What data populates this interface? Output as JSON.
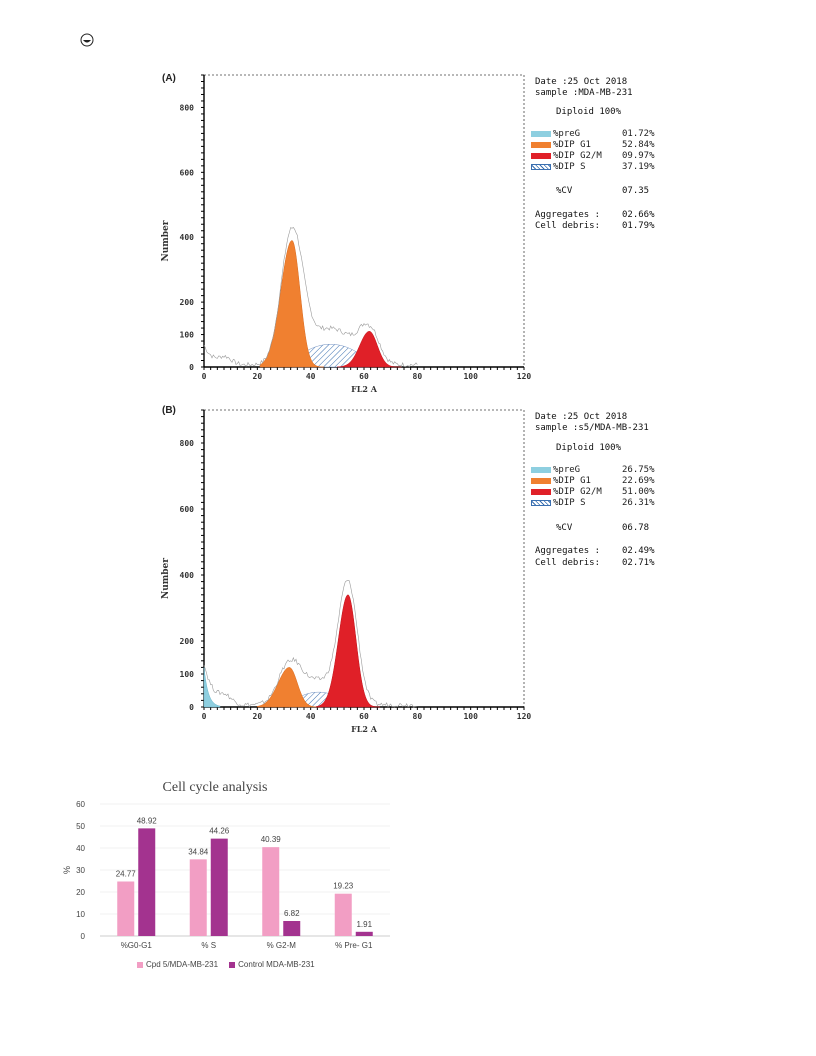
{
  "flow_panels": [
    {
      "label": "(A)",
      "date_line": "Date :25 Oct 2018",
      "sample_line": "sample :MDA-MB-231",
      "diploid": "Diploid 100%",
      "legend": [
        {
          "name": "%preG",
          "value": "01.72%",
          "color": "#8ecfe0"
        },
        {
          "name": "%DIP G1",
          "value": "52.84%",
          "color": "#f08030"
        },
        {
          "name": "%DIP G2/M",
          "value": "09.97%",
          "color": "#e02028"
        },
        {
          "name": "%DIP S",
          "value": "37.19%",
          "color": "hatch"
        }
      ],
      "cv_label": "%CV",
      "cv_value": "07.35",
      "aggregates_label": "Aggregates :",
      "aggregates_value": "02.66%",
      "debris_label": "Cell debris:",
      "debris_value": "01.79%",
      "ylabel": "Number",
      "xlabel": "FL2 A",
      "yticks": [
        0,
        100,
        200,
        400,
        600,
        800
      ],
      "xticks": [
        0,
        20,
        40,
        60,
        80,
        100,
        120
      ],
      "peaks": {
        "g1_center": 33,
        "g1_height": 390,
        "g2_center": 62,
        "g2_height": 110,
        "s_height": 70,
        "preg_height": 0
      }
    },
    {
      "label": "(B)",
      "date_line": "Date :25 Oct 2018",
      "sample_line": "sample :s5/MDA-MB-231",
      "diploid": "Diploid 100%",
      "legend": [
        {
          "name": "%preG",
          "value": "26.75%",
          "color": "#8ecfe0"
        },
        {
          "name": "%DIP G1",
          "value": "22.69%",
          "color": "#f08030"
        },
        {
          "name": "%DIP G2/M",
          "value": "51.00%",
          "color": "#e02028"
        },
        {
          "name": "%DIP S",
          "value": "26.31%",
          "color": "hatch"
        }
      ],
      "cv_label": "%CV",
      "cv_value": "06.78",
      "aggregates_label": "Aggregates :",
      "aggregates_value": "02.49%",
      "debris_label": "Cell debris:",
      "debris_value": "02.71%",
      "ylabel": "Number",
      "xlabel": "FL2 A",
      "yticks": [
        0,
        100,
        200,
        400,
        600,
        800
      ],
      "xticks": [
        0,
        20,
        40,
        60,
        80,
        100,
        120
      ],
      "peaks": {
        "g1_center": 32,
        "g1_height": 120,
        "g2_center": 54,
        "g2_height": 340,
        "s_height": 45,
        "preg_height": 120
      }
    }
  ],
  "chart_data": {
    "type": "bar",
    "title": "Cell cycle analysis",
    "xlabel": "",
    "ylabel": "%",
    "ylim": [
      0,
      60
    ],
    "yticks": [
      0,
      10,
      20,
      30,
      40,
      50,
      60
    ],
    "categories": [
      "%G0-G1",
      "% S",
      "% G2-M",
      "% Pre- G1"
    ],
    "series": [
      {
        "name": "Cpd 5/MDA-MB-231",
        "color": "#f29ec4",
        "values": [
          24.77,
          34.84,
          40.39,
          19.23
        ]
      },
      {
        "name": "Control MDA-MB-231",
        "color": "#a3338f",
        "values": [
          48.92,
          44.26,
          6.82,
          1.91
        ]
      }
    ],
    "legend_position": "bottom"
  }
}
